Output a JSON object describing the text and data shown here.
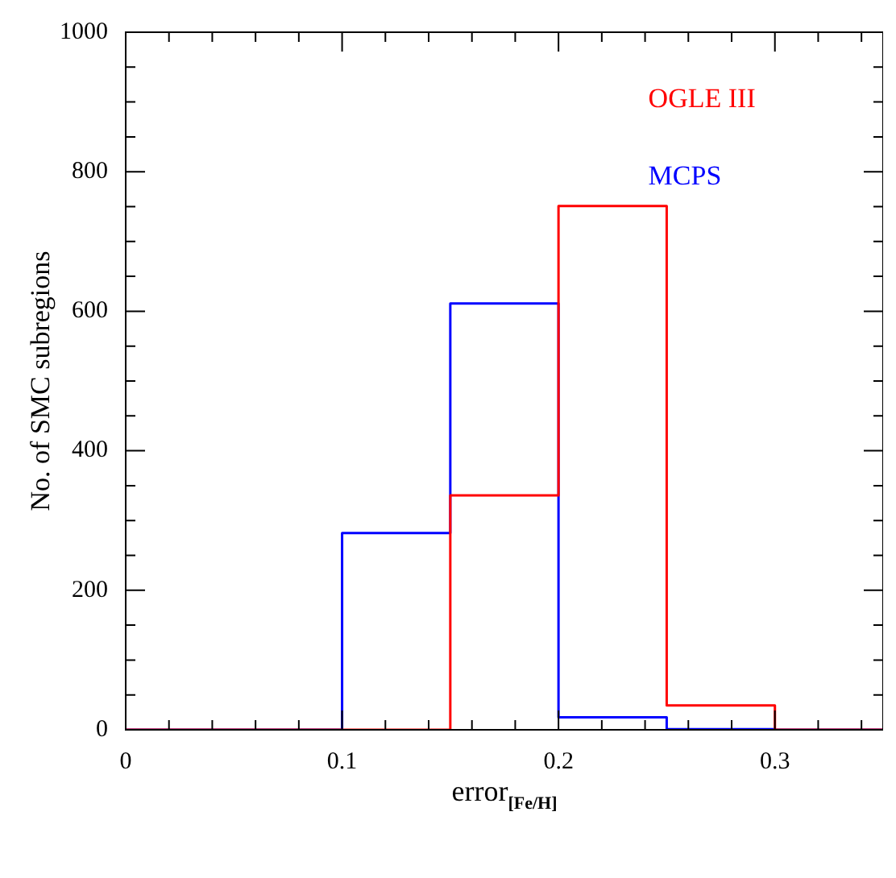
{
  "chart_data": {
    "type": "histogram",
    "xlabel": "error$_{[Fe/H]}$",
    "ylabel": "No. of SMC subregions",
    "bins": [
      0,
      0.05,
      0.1,
      0.15,
      0.2,
      0.25,
      0.3,
      0.35
    ],
    "series": [
      {
        "name": "OGLE III",
        "color": "#ff0000",
        "values": [
          0,
          0,
          0,
          336,
          751,
          35,
          0
        ]
      },
      {
        "name": "MCPS",
        "color": "#0000ff",
        "values": [
          0,
          0,
          282,
          611,
          18,
          1,
          0
        ]
      }
    ],
    "xlim": [
      0,
      0.35
    ],
    "xticks": [
      0,
      {
        "value": 0.02,
        "label": null
      },
      {
        "value": 0.04,
        "label": null
      },
      {
        "value": 0.06,
        "label": null
      },
      {
        "value": 0.08,
        "label": null
      },
      0.1,
      {
        "value": 0.12,
        "label": null
      },
      {
        "value": 0.14,
        "label": null
      },
      {
        "value": 0.16,
        "label": null
      },
      {
        "value": 0.18,
        "label": null
      },
      0.2,
      {
        "value": 0.22,
        "label": null
      },
      {
        "value": 0.24,
        "label": null
      },
      {
        "value": 0.26,
        "label": null
      },
      {
        "value": 0.28,
        "label": null
      },
      0.3,
      {
        "value": 0.32,
        "label": null
      },
      {
        "value": 0.34,
        "label": null
      }
    ],
    "ylim": [
      0,
      1000
    ],
    "yticks": [
      0,
      {
        "value": 50,
        "label": null
      },
      {
        "value": 100,
        "label": null
      },
      {
        "value": 150,
        "label": null
      },
      200,
      {
        "value": 250,
        "label": null
      },
      {
        "value": 300,
        "label": null
      },
      {
        "value": 350,
        "label": null
      },
      400,
      {
        "value": 450,
        "label": null
      },
      {
        "value": 500,
        "label": null
      },
      {
        "value": 550,
        "label": null
      },
      600,
      {
        "value": 650,
        "label": null
      },
      {
        "value": 700,
        "label": null
      },
      {
        "value": 750,
        "label": null
      },
      800,
      {
        "value": 850,
        "label": null
      },
      {
        "value": 900,
        "label": null
      },
      {
        "value": 950,
        "label": null
      },
      1000
    ],
    "grid": false,
    "legend": "top right"
  }
}
